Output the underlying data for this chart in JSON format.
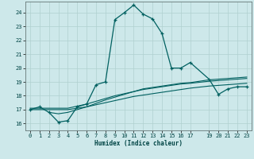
{
  "xlabel": "Humidex (Indice chaleur)",
  "background_color": "#cde8ea",
  "grid_color": "#b0d0d0",
  "line_color": "#006060",
  "xlim": [
    -0.5,
    23.5
  ],
  "ylim": [
    15.5,
    24.8
  ],
  "yticks": [
    16,
    17,
    18,
    19,
    20,
    21,
    22,
    23,
    24
  ],
  "xticks": [
    0,
    1,
    2,
    3,
    4,
    5,
    6,
    7,
    8,
    9,
    10,
    11,
    12,
    13,
    14,
    15,
    16,
    17,
    19,
    20,
    21,
    22,
    23
  ],
  "series1_x": [
    0,
    1,
    2,
    3,
    4,
    5,
    6,
    7,
    8,
    9,
    10,
    11,
    12,
    13,
    14,
    15,
    16,
    17,
    19,
    20,
    21,
    22,
    23
  ],
  "series1_y": [
    17.0,
    17.2,
    16.8,
    16.1,
    16.2,
    17.2,
    17.4,
    18.8,
    19.0,
    23.5,
    24.0,
    24.55,
    23.9,
    23.55,
    22.5,
    20.0,
    20.0,
    20.4,
    19.2,
    18.1,
    18.5,
    18.65,
    18.65
  ],
  "series2_x": [
    0,
    2,
    4,
    5,
    6,
    7,
    8,
    9,
    10,
    11,
    12,
    13,
    14,
    15,
    16,
    17,
    19,
    20,
    21,
    22,
    23
  ],
  "series2_y": [
    17.0,
    17.0,
    17.0,
    17.1,
    17.2,
    17.35,
    17.5,
    17.65,
    17.8,
    17.95,
    18.05,
    18.15,
    18.25,
    18.35,
    18.45,
    18.55,
    18.7,
    18.75,
    18.8,
    18.85,
    18.9
  ],
  "series3_x": [
    0,
    2,
    4,
    5,
    6,
    7,
    8,
    9,
    10,
    11,
    12,
    13,
    14,
    15,
    16,
    17,
    19,
    20,
    21,
    22,
    23
  ],
  "series3_y": [
    17.1,
    17.1,
    17.1,
    17.25,
    17.4,
    17.6,
    17.8,
    18.0,
    18.15,
    18.3,
    18.45,
    18.55,
    18.65,
    18.75,
    18.85,
    18.9,
    19.05,
    19.1,
    19.15,
    19.2,
    19.25
  ],
  "series4_x": [
    2,
    3,
    4,
    5,
    6,
    7,
    8,
    9,
    10,
    11,
    12,
    13,
    14,
    15,
    16,
    17,
    19,
    20,
    21,
    22,
    23
  ],
  "series4_y": [
    16.8,
    16.7,
    16.8,
    17.0,
    17.2,
    17.45,
    17.7,
    17.9,
    18.1,
    18.3,
    18.5,
    18.6,
    18.7,
    18.8,
    18.9,
    18.95,
    19.15,
    19.2,
    19.25,
    19.3,
    19.35
  ]
}
